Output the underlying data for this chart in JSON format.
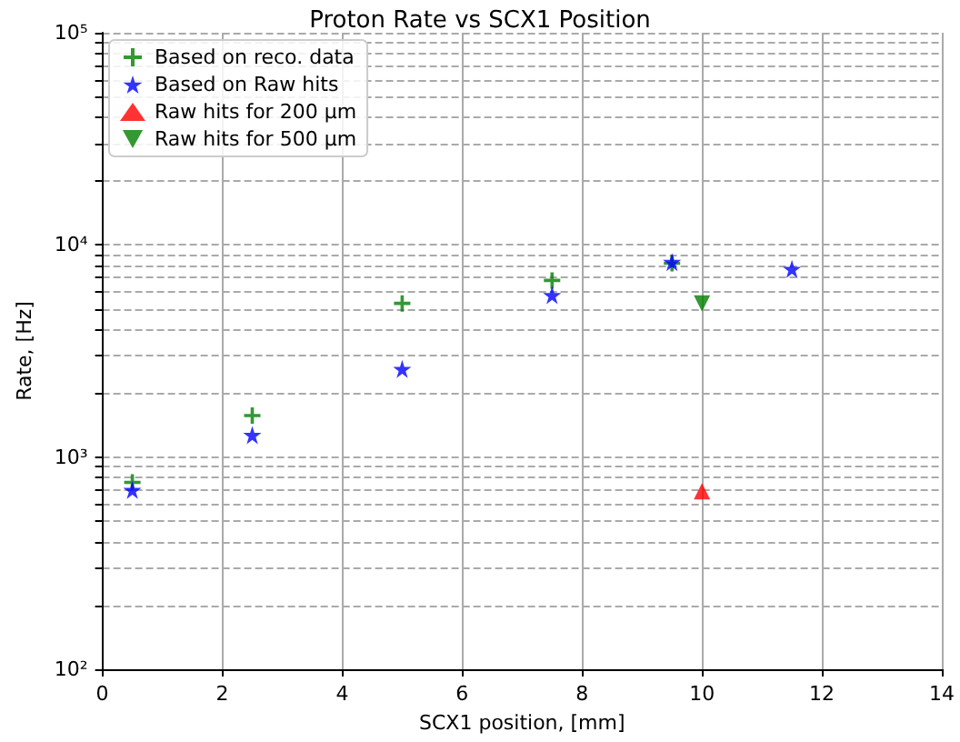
{
  "chart_data": {
    "type": "scatter",
    "title": "Proton Rate vs SCX1 Position",
    "xlabel": "SCX1 position, [mm]",
    "ylabel": "Rate, [Hz]",
    "series": [
      {
        "name": "Based on reco. data",
        "color": "#008000",
        "marker": "cross",
        "x": [
          0.5,
          2.5,
          5,
          7.5,
          9.5
        ],
        "values": [
          760,
          1570,
          5300,
          6800,
          8200
        ]
      },
      {
        "name": "Based on Raw hits",
        "color": "#0000ff",
        "marker": "star",
        "x": [
          0.5,
          2.5,
          5,
          7.5,
          9.5,
          11.5
        ],
        "values": [
          700,
          1270,
          2600,
          5800,
          8300,
          7700
        ]
      },
      {
        "name": "Raw hits for 200 μm",
        "color": "#ff0000",
        "marker": "triangle",
        "x": [
          10
        ],
        "values": [
          690
        ]
      },
      {
        "name": "Raw hits for 500 μm",
        "color": "#008000",
        "marker": "triangle_down",
        "x": [
          10
        ],
        "values": [
          5300
        ]
      }
    ],
    "xlim": [
      0,
      14
    ],
    "xticks": [
      0,
      2,
      4,
      6,
      8,
      10,
      12,
      14
    ],
    "log": "y",
    "ylim": [
      100,
      100000
    ],
    "yticks": [
      {
        "value": 100,
        "label": "10²"
      },
      {
        "value": 200,
        "label": null
      },
      {
        "value": 300,
        "label": null
      },
      {
        "value": 400,
        "label": null
      },
      {
        "value": 500,
        "label": null
      },
      {
        "value": 600,
        "label": null
      },
      {
        "value": 700,
        "label": null
      },
      {
        "value": 800,
        "label": null
      },
      {
        "value": 900,
        "label": null
      },
      {
        "value": 1000,
        "label": "10³"
      },
      {
        "value": 2000,
        "label": null
      },
      {
        "value": 3000,
        "label": null
      },
      {
        "value": 4000,
        "label": null
      },
      {
        "value": 5000,
        "label": null
      },
      {
        "value": 6000,
        "label": null
      },
      {
        "value": 7000,
        "label": null
      },
      {
        "value": 8000,
        "label": null
      },
      {
        "value": 9000,
        "label": null
      },
      {
        "value": 10000,
        "label": "10⁴"
      },
      {
        "value": 20000,
        "label": null
      },
      {
        "value": 30000,
        "label": null
      },
      {
        "value": 40000,
        "label": null
      },
      {
        "value": 50000,
        "label": null
      },
      {
        "value": 60000,
        "label": null
      },
      {
        "value": 70000,
        "label": null
      },
      {
        "value": 80000,
        "label": null
      },
      {
        "value": 90000,
        "label": null
      },
      {
        "value": 100000,
        "label": "10⁵"
      }
    ],
    "grid": true,
    "legend": "top left"
  }
}
